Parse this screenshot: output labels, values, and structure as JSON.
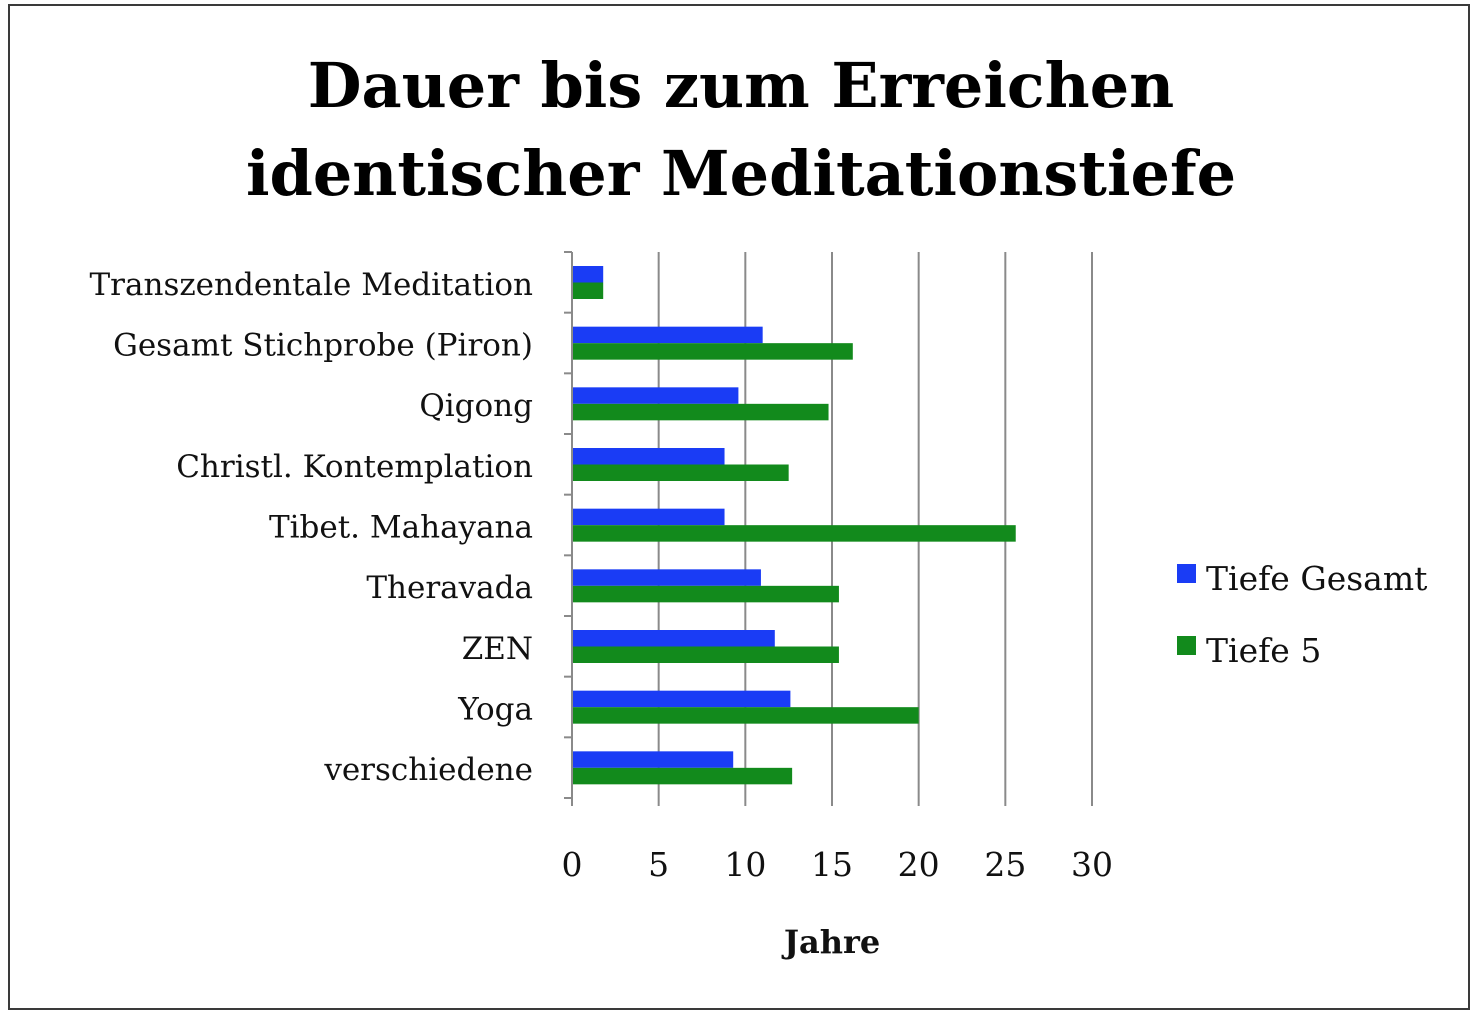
{
  "chart_data": {
    "type": "bar",
    "orientation": "horizontal",
    "title_lines": [
      "Dauer bis zum Erreichen",
      "identischer Meditationstiefe"
    ],
    "xlabel": "Jahre",
    "ylabel": "",
    "xlim": [
      0,
      30
    ],
    "xticks": [
      "0",
      "5",
      "10",
      "15",
      "20",
      "25",
      "30"
    ],
    "grid": true,
    "legend_position": "right",
    "categories": [
      "Transzendentale Meditation",
      "Gesamt Stichprobe (Piron)",
      "Qigong",
      "Christl. Kontemplation",
      "Tibet. Mahayana",
      "Theravada",
      "ZEN",
      "Yoga",
      "verschiedene"
    ],
    "series": [
      {
        "name": "Tiefe Gesamt",
        "color": "#1a3cf5",
        "values": [
          1.8,
          11.0,
          9.6,
          8.8,
          8.8,
          10.9,
          11.7,
          12.6,
          9.3
        ]
      },
      {
        "name": "Tiefe 5",
        "color": "#128a1c",
        "values": [
          1.8,
          16.2,
          14.8,
          12.5,
          25.6,
          15.4,
          15.4,
          20.0,
          12.7
        ]
      }
    ]
  }
}
